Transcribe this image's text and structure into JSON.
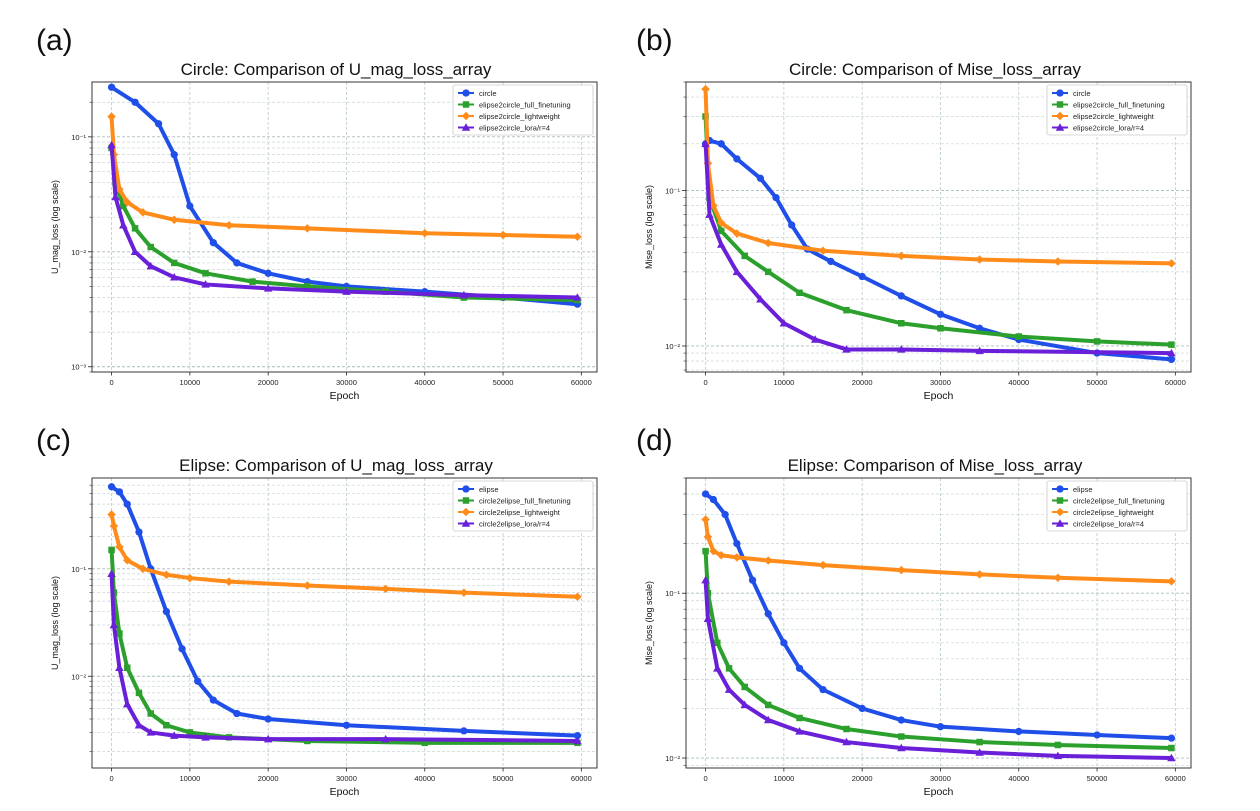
{
  "figure": {
    "panel_labels": [
      "(a)",
      "(b)",
      "(c)",
      "(d)"
    ]
  },
  "chart_data": [
    {
      "type": "line",
      "title": "Circle: Comparison of U_mag_loss_array",
      "xlabel": "Epoch",
      "ylabel": "U_mag_loss (log scale)",
      "yscale": "log",
      "xlim": [
        -2500,
        62000
      ],
      "ylim": [
        0.0009,
        0.3
      ],
      "xticks": [
        0,
        10000,
        20000,
        30000,
        40000,
        50000,
        60000
      ],
      "xtick_labels": [
        "0",
        "10000",
        "20000",
        "30000",
        "40000",
        "50000",
        "60000"
      ],
      "yticks": [
        0.001,
        0.01,
        0.1
      ],
      "ytick_labels": [
        "10⁻³",
        "10⁻²",
        "10⁻¹"
      ],
      "grid": true,
      "legend_position": "top-right",
      "series": [
        {
          "name": "circle",
          "color": "#1f4fe8",
          "marker": "circle",
          "x": [
            0,
            3000,
            6000,
            8000,
            10000,
            13000,
            16000,
            20000,
            25000,
            30000,
            40000,
            50000,
            59500
          ],
          "y": [
            0.27,
            0.2,
            0.13,
            0.07,
            0.025,
            0.012,
            0.008,
            0.0065,
            0.0055,
            0.005,
            0.0045,
            0.004,
            0.0035
          ]
        },
        {
          "name": "elipse2circle_full_finetuning",
          "color": "#2ca02c",
          "marker": "square",
          "x": [
            0,
            500,
            1500,
            3000,
            5000,
            8000,
            12000,
            18000,
            25000,
            35000,
            45000,
            59500
          ],
          "y": [
            0.08,
            0.04,
            0.025,
            0.016,
            0.011,
            0.008,
            0.0065,
            0.0055,
            0.005,
            0.0045,
            0.004,
            0.0038
          ]
        },
        {
          "name": "elipse2circle_lightweight",
          "color": "#ff8c1a",
          "marker": "diamond",
          "x": [
            0,
            300,
            1000,
            2000,
            4000,
            8000,
            15000,
            25000,
            40000,
            50000,
            59500
          ],
          "y": [
            0.15,
            0.07,
            0.035,
            0.027,
            0.022,
            0.019,
            0.017,
            0.016,
            0.0145,
            0.014,
            0.0135
          ]
        },
        {
          "name": "elipse2circle_lora/r=4",
          "color": "#6a1fd8",
          "marker": "triangle",
          "x": [
            0,
            500,
            1500,
            3000,
            5000,
            8000,
            12000,
            20000,
            30000,
            45000,
            59500
          ],
          "y": [
            0.085,
            0.03,
            0.017,
            0.01,
            0.0075,
            0.006,
            0.0052,
            0.0048,
            0.0045,
            0.0042,
            0.004
          ]
        }
      ]
    },
    {
      "type": "line",
      "title": "Circle: Comparison of Mise_loss_array",
      "xlabel": "Epoch",
      "ylabel": "Mise_loss (log scale)",
      "yscale": "log",
      "xlim": [
        -2500,
        62000
      ],
      "ylim": [
        0.0068,
        0.5
      ],
      "xticks": [
        0,
        10000,
        20000,
        30000,
        40000,
        50000,
        60000
      ],
      "xtick_labels": [
        "0",
        "10000",
        "20000",
        "30000",
        "40000",
        "50000",
        "60000"
      ],
      "yticks": [
        0.01,
        0.1
      ],
      "ytick_labels": [
        "10⁻²",
        "10⁻¹"
      ],
      "grid": true,
      "legend_position": "top-right",
      "series": [
        {
          "name": "circle",
          "color": "#1f4fe8",
          "marker": "circle",
          "x": [
            0,
            500,
            2000,
            4000,
            7000,
            9000,
            11000,
            13000,
            16000,
            20000,
            25000,
            30000,
            35000,
            40000,
            50000,
            59500
          ],
          "y": [
            0.2,
            0.21,
            0.2,
            0.16,
            0.12,
            0.09,
            0.06,
            0.042,
            0.035,
            0.028,
            0.021,
            0.016,
            0.013,
            0.011,
            0.009,
            0.0082
          ]
        },
        {
          "name": "elipse2circle_full_finetuning",
          "color": "#2ca02c",
          "marker": "square",
          "x": [
            0,
            500,
            2000,
            5000,
            8000,
            12000,
            18000,
            25000,
            30000,
            40000,
            50000,
            59500
          ],
          "y": [
            0.3,
            0.09,
            0.055,
            0.038,
            0.03,
            0.022,
            0.017,
            0.014,
            0.013,
            0.0115,
            0.0107,
            0.0102
          ]
        },
        {
          "name": "elipse2circle_lightweight",
          "color": "#ff8c1a",
          "marker": "diamond",
          "x": [
            0,
            300,
            1000,
            2000,
            4000,
            8000,
            15000,
            25000,
            35000,
            45000,
            59500
          ],
          "y": [
            0.45,
            0.15,
            0.08,
            0.062,
            0.053,
            0.046,
            0.041,
            0.038,
            0.036,
            0.035,
            0.034
          ]
        },
        {
          "name": "elipse2circle_lora/r=4",
          "color": "#6a1fd8",
          "marker": "triangle",
          "x": [
            0,
            500,
            2000,
            4000,
            7000,
            10000,
            14000,
            18000,
            25000,
            35000,
            59500
          ],
          "y": [
            0.2,
            0.07,
            0.045,
            0.03,
            0.02,
            0.014,
            0.011,
            0.0095,
            0.0095,
            0.0093,
            0.009
          ]
        }
      ]
    },
    {
      "type": "line",
      "title": "Elipse: Comparison of U_mag_loss_array",
      "xlabel": "Epoch",
      "ylabel": "U_mag_loss (log scale)",
      "yscale": "log",
      "xlim": [
        -2500,
        62000
      ],
      "ylim": [
        0.0014,
        0.7
      ],
      "xticks": [
        0,
        10000,
        20000,
        30000,
        40000,
        50000,
        60000
      ],
      "xtick_labels": [
        "0",
        "10000",
        "20000",
        "30000",
        "40000",
        "50000",
        "60000"
      ],
      "yticks": [
        0.01,
        0.1
      ],
      "ytick_labels": [
        "10⁻²",
        "10⁻¹"
      ],
      "grid": true,
      "legend_position": "top-right",
      "series": [
        {
          "name": "elipse",
          "color": "#1f4fe8",
          "marker": "circle",
          "x": [
            0,
            1000,
            2000,
            3500,
            5000,
            7000,
            9000,
            11000,
            13000,
            16000,
            20000,
            30000,
            45000,
            59500
          ],
          "y": [
            0.58,
            0.52,
            0.4,
            0.22,
            0.1,
            0.04,
            0.018,
            0.009,
            0.006,
            0.0045,
            0.004,
            0.0035,
            0.0031,
            0.0028
          ]
        },
        {
          "name": "circle2elipse_full_finetuning",
          "color": "#2ca02c",
          "marker": "square",
          "x": [
            0,
            300,
            1000,
            2000,
            3500,
            5000,
            7000,
            10000,
            15000,
            25000,
            40000,
            59500
          ],
          "y": [
            0.15,
            0.06,
            0.025,
            0.012,
            0.007,
            0.0045,
            0.0035,
            0.003,
            0.0027,
            0.0025,
            0.0024,
            0.0024
          ]
        },
        {
          "name": "circle2elipse_lightweight",
          "color": "#ff8c1a",
          "marker": "diamond",
          "x": [
            0,
            300,
            1000,
            2000,
            4000,
            7000,
            10000,
            15000,
            25000,
            35000,
            45000,
            59500
          ],
          "y": [
            0.32,
            0.25,
            0.16,
            0.12,
            0.1,
            0.088,
            0.082,
            0.076,
            0.07,
            0.065,
            0.06,
            0.055
          ]
        },
        {
          "name": "circle2elipse_lora/r=4",
          "color": "#6a1fd8",
          "marker": "triangle",
          "x": [
            0,
            300,
            1000,
            2000,
            3500,
            5000,
            8000,
            12000,
            20000,
            35000,
            59500
          ],
          "y": [
            0.09,
            0.03,
            0.012,
            0.0055,
            0.0035,
            0.003,
            0.0028,
            0.0027,
            0.0026,
            0.0026,
            0.0025
          ]
        }
      ]
    },
    {
      "type": "line",
      "title": "Elipse: Comparison of Mise_loss_array",
      "xlabel": "Epoch",
      "ylabel": "Mise_loss (log scale)",
      "yscale": "log",
      "xlim": [
        -2500,
        62000
      ],
      "ylim": [
        0.0087,
        0.5
      ],
      "xticks": [
        0,
        10000,
        20000,
        30000,
        40000,
        50000,
        60000
      ],
      "xtick_labels": [
        "0",
        "10000",
        "20000",
        "30000",
        "40000",
        "50000",
        "60000"
      ],
      "yticks": [
        0.01,
        0.1
      ],
      "ytick_labels": [
        "10⁻²",
        "10⁻¹"
      ],
      "grid": true,
      "legend_position": "top-right",
      "series": [
        {
          "name": "elipse",
          "color": "#1f4fe8",
          "marker": "circle",
          "x": [
            0,
            1000,
            2500,
            4000,
            6000,
            8000,
            10000,
            12000,
            15000,
            20000,
            25000,
            30000,
            40000,
            50000,
            59500
          ],
          "y": [
            0.4,
            0.37,
            0.3,
            0.2,
            0.12,
            0.075,
            0.05,
            0.035,
            0.026,
            0.02,
            0.017,
            0.0155,
            0.0145,
            0.0138,
            0.0132
          ]
        },
        {
          "name": "circle2elipse_full_finetuning",
          "color": "#2ca02c",
          "marker": "square",
          "x": [
            0,
            300,
            1500,
            3000,
            5000,
            8000,
            12000,
            18000,
            25000,
            35000,
            45000,
            59500
          ],
          "y": [
            0.18,
            0.1,
            0.05,
            0.035,
            0.027,
            0.021,
            0.0175,
            0.015,
            0.0135,
            0.0125,
            0.012,
            0.0115
          ]
        },
        {
          "name": "circle2elipse_lightweight",
          "color": "#ff8c1a",
          "marker": "diamond",
          "x": [
            0,
            300,
            1000,
            2000,
            4000,
            8000,
            15000,
            25000,
            35000,
            45000,
            59500
          ],
          "y": [
            0.28,
            0.22,
            0.18,
            0.17,
            0.165,
            0.158,
            0.148,
            0.138,
            0.13,
            0.124,
            0.118
          ]
        },
        {
          "name": "circle2elipse_lora/r=4",
          "color": "#6a1fd8",
          "marker": "triangle",
          "x": [
            0,
            300,
            1500,
            3000,
            5000,
            8000,
            12000,
            18000,
            25000,
            35000,
            45000,
            59500
          ],
          "y": [
            0.12,
            0.07,
            0.035,
            0.026,
            0.021,
            0.017,
            0.0145,
            0.0125,
            0.0115,
            0.0108,
            0.0103,
            0.01
          ]
        }
      ]
    }
  ]
}
